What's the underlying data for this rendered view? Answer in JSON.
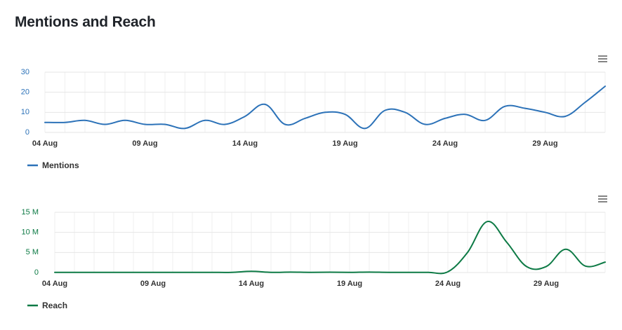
{
  "page": {
    "title": "Mentions and Reach"
  },
  "chart_data": [
    {
      "type": "line",
      "color": "#2c72b8",
      "categories": [
        "04 Aug",
        "05 Aug",
        "06 Aug",
        "07 Aug",
        "08 Aug",
        "09 Aug",
        "10 Aug",
        "11 Aug",
        "12 Aug",
        "13 Aug",
        "14 Aug",
        "15 Aug",
        "16 Aug",
        "17 Aug",
        "18 Aug",
        "19 Aug",
        "20 Aug",
        "21 Aug",
        "22 Aug",
        "23 Aug",
        "24 Aug",
        "25 Aug",
        "26 Aug",
        "27 Aug",
        "28 Aug",
        "29 Aug",
        "30 Aug",
        "31 Aug",
        "01 Sep"
      ],
      "x_tick_labels": [
        "04 Aug",
        "09 Aug",
        "14 Aug",
        "19 Aug",
        "24 Aug",
        "29 Aug"
      ],
      "y_tick_labels": [
        "0",
        "10",
        "20",
        "30"
      ],
      "ylim": [
        0,
        30
      ],
      "series": [
        {
          "name": "Mentions",
          "values": [
            5,
            5,
            6,
            4,
            6,
            4,
            4,
            2,
            6,
            4,
            8,
            14,
            4,
            7,
            10,
            9,
            2,
            11,
            10,
            4,
            7,
            9,
            6,
            13,
            12,
            10,
            8,
            15,
            23
          ]
        }
      ],
      "legend": "bottom-left",
      "grid": true
    },
    {
      "type": "line",
      "color": "#0d7a45",
      "categories": [
        "04 Aug",
        "05 Aug",
        "06 Aug",
        "07 Aug",
        "08 Aug",
        "09 Aug",
        "10 Aug",
        "11 Aug",
        "12 Aug",
        "13 Aug",
        "14 Aug",
        "15 Aug",
        "16 Aug",
        "17 Aug",
        "18 Aug",
        "19 Aug",
        "20 Aug",
        "21 Aug",
        "22 Aug",
        "23 Aug",
        "24 Aug",
        "25 Aug",
        "26 Aug",
        "27 Aug",
        "28 Aug",
        "29 Aug",
        "30 Aug",
        "31 Aug",
        "01 Sep"
      ],
      "x_tick_labels": [
        "04 Aug",
        "09 Aug",
        "14 Aug",
        "19 Aug",
        "24 Aug",
        "29 Aug"
      ],
      "y_tick_labels": [
        "0",
        "5 M",
        "10 M",
        "15 M"
      ],
      "ylim": [
        0,
        15000000
      ],
      "series": [
        {
          "name": "Reach",
          "values": [
            50000,
            50000,
            50000,
            50000,
            50000,
            50000,
            50000,
            50000,
            50000,
            50000,
            300000,
            50000,
            100000,
            50000,
            80000,
            50000,
            100000,
            50000,
            50000,
            50000,
            200000,
            5000000,
            12700000,
            7500000,
            1500000,
            1500000,
            5800000,
            1600000,
            2600000
          ]
        }
      ],
      "legend": "bottom-left",
      "grid": true
    }
  ]
}
